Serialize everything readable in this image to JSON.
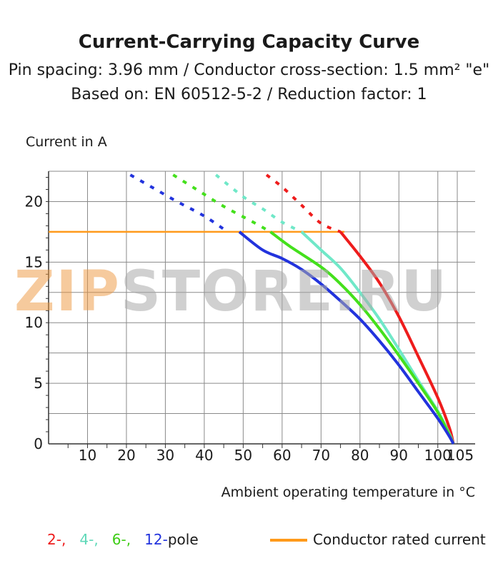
{
  "chart_data": {
    "type": "line",
    "title": "Current-Carrying Capacity Curve",
    "subtitle_lines": [
      "Pin spacing: 3.96 mm / Conductor cross-section: 1.5 mm² \"e\"",
      "Based on: EN 60512-5-2 / Reduction factor: 1"
    ],
    "ylabel": "Current in A",
    "xlabel": "Ambient operating temperature in  °C",
    "xlim": [
      0,
      105
    ],
    "ylim": [
      0,
      22.5
    ],
    "x_ticks": [
      10,
      20,
      30,
      40,
      50,
      60,
      70,
      80,
      90,
      100,
      105
    ],
    "x_tick_labels": [
      "10",
      "20",
      "30",
      "40",
      "50",
      "60",
      "70",
      "80",
      "90",
      "100",
      "105"
    ],
    "y_ticks": [
      0,
      5,
      10,
      15,
      20
    ],
    "y_tick_labels": [
      "0",
      "5",
      "10",
      "15",
      "20"
    ],
    "grid": true,
    "rated_current": {
      "name": "Conductor rated current",
      "value": 17.5,
      "x_range": [
        0,
        76
      ],
      "color": "#ff9a1a"
    },
    "series": [
      {
        "label": "2-,",
        "color": "#ee1c1c",
        "dashed": [
          [
            56,
            22.2
          ],
          [
            60,
            21.2
          ],
          [
            65,
            19.7
          ],
          [
            70,
            18.2
          ],
          [
            75,
            17.5
          ]
        ],
        "values": [
          [
            75,
            17.5
          ],
          [
            80,
            15.5
          ],
          [
            85,
            13.3
          ],
          [
            90,
            10.5
          ],
          [
            95,
            7.2
          ],
          [
            100,
            3.8
          ],
          [
            103,
            1.3
          ],
          [
            104,
            0
          ]
        ]
      },
      {
        "label": "4-,",
        "color": "#70e8c8",
        "dashed": [
          [
            43,
            22.2
          ],
          [
            50,
            20.4
          ],
          [
            55,
            19.4
          ],
          [
            60,
            18.3
          ],
          [
            65,
            17.5
          ]
        ],
        "values": [
          [
            65,
            17.5
          ],
          [
            70,
            16.0
          ],
          [
            75,
            14.5
          ],
          [
            80,
            12.5
          ],
          [
            85,
            10.3
          ],
          [
            90,
            7.8
          ],
          [
            95,
            5.2
          ],
          [
            100,
            2.7
          ],
          [
            103,
            0.8
          ],
          [
            104,
            0
          ]
        ]
      },
      {
        "label": "6-,",
        "color": "#44e01c",
        "dashed": [
          [
            32,
            22.2
          ],
          [
            38,
            21.0
          ],
          [
            45,
            19.6
          ],
          [
            52,
            18.4
          ],
          [
            57,
            17.5
          ]
        ],
        "values": [
          [
            57,
            17.5
          ],
          [
            62,
            16.3
          ],
          [
            70,
            14.6
          ],
          [
            75,
            13.2
          ],
          [
            80,
            11.5
          ],
          [
            85,
            9.5
          ],
          [
            90,
            7.3
          ],
          [
            95,
            5.0
          ],
          [
            100,
            2.6
          ],
          [
            103,
            0.7
          ],
          [
            104,
            0
          ]
        ]
      },
      {
        "label": "12-",
        "color": "#2233dd",
        "dashed": [
          [
            21,
            22.2
          ],
          [
            27,
            21.1
          ],
          [
            33,
            20.0
          ],
          [
            40,
            18.8
          ],
          [
            46,
            17.5
          ]
        ],
        "values": [
          [
            49,
            17.5
          ],
          [
            55,
            16.0
          ],
          [
            60,
            15.3
          ],
          [
            65,
            14.4
          ],
          [
            70,
            13.2
          ],
          [
            75,
            11.8
          ],
          [
            80,
            10.3
          ],
          [
            85,
            8.5
          ],
          [
            90,
            6.5
          ],
          [
            95,
            4.3
          ],
          [
            100,
            2.1
          ],
          [
            103,
            0.6
          ],
          [
            104,
            0
          ]
        ]
      }
    ]
  },
  "legend": {
    "poles_suffix": "pole",
    "rated_label": "Conductor rated current"
  },
  "watermark": {
    "part1": "ZIP",
    "part2": "STORE.RU"
  }
}
